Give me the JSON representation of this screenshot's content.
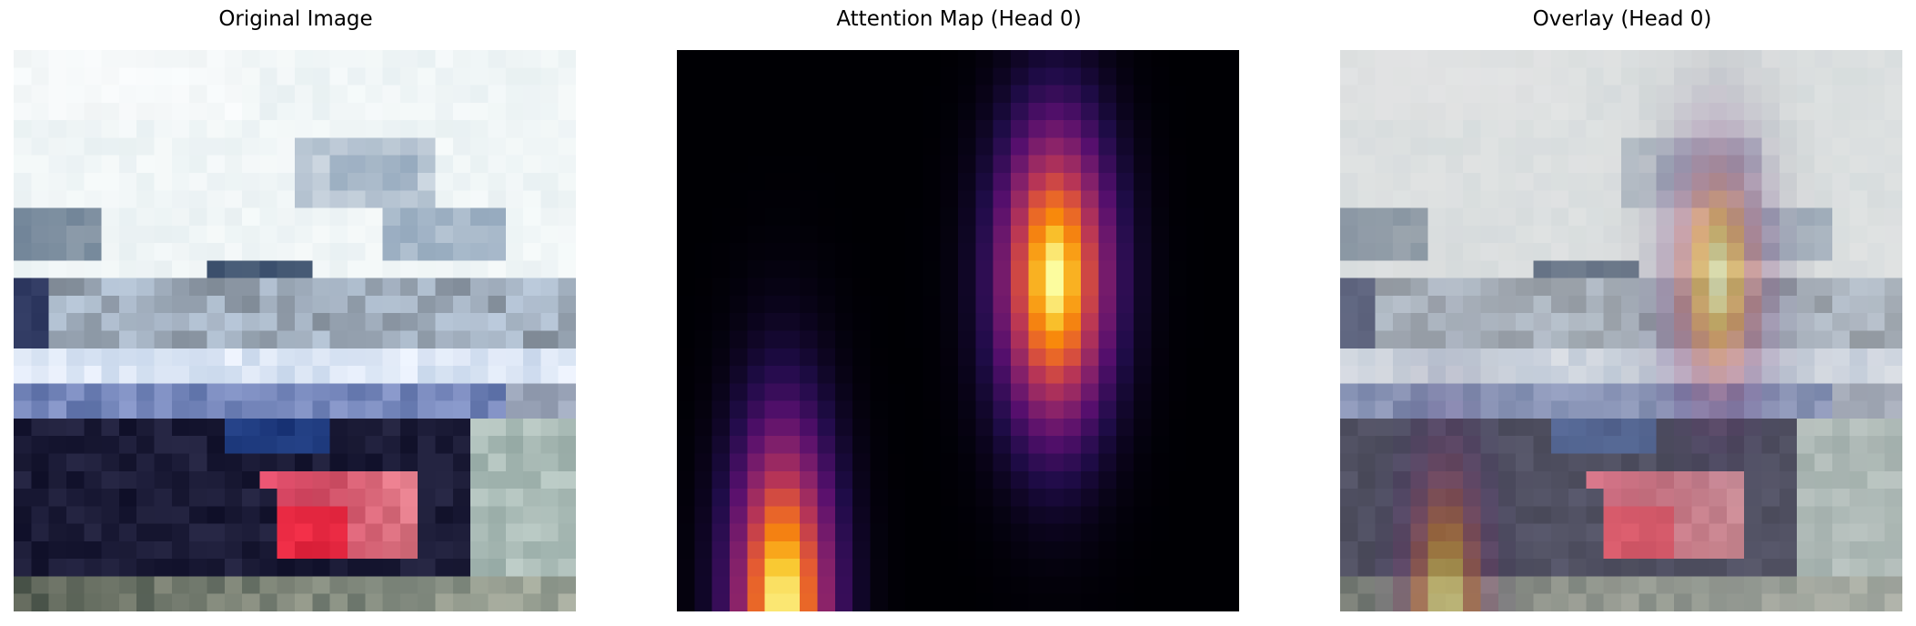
{
  "panels": [
    {
      "title": "Original Image",
      "kind": "original"
    },
    {
      "title": "Attention Map (Head 0)",
      "kind": "attention"
    },
    {
      "title": "Overlay (Head 0)",
      "kind": "overlay"
    }
  ],
  "colormap": "inferno",
  "overlay_alpha": 0.5,
  "attention_peaks": [
    {
      "col": 21,
      "row": 12.5,
      "rows_spread": 6,
      "cols_spread": 2.2,
      "intensity": 1.0
    },
    {
      "col": 5.5,
      "row": 31,
      "rows_spread": 7,
      "cols_spread": 2.0,
      "intensity": 1.0
    }
  ]
}
